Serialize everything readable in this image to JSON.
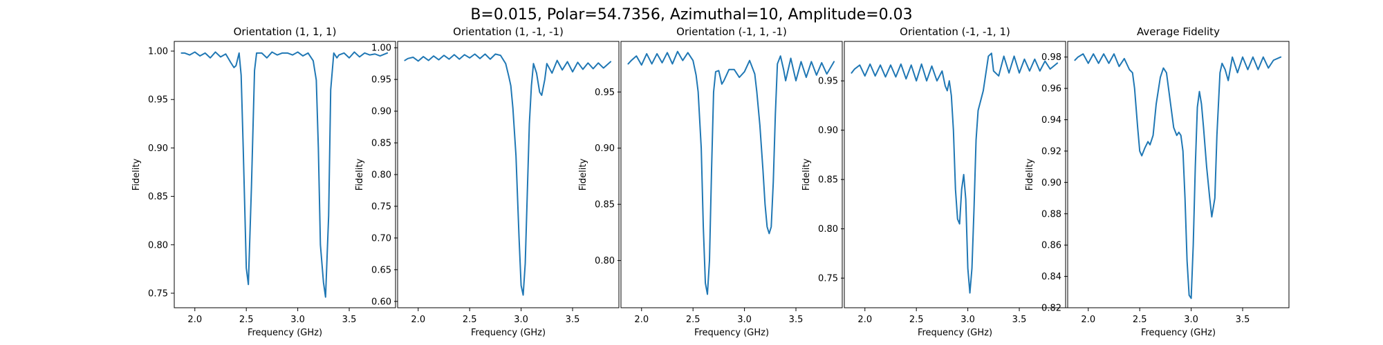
{
  "figure": {
    "suptitle": "B=0.015, Polar=54.7356, Azimuthal=10, Amplitude=0.03",
    "line_color": "#1f77b4"
  },
  "chart_data": [
    {
      "type": "line",
      "title": "Orientation (1, 1, 1)",
      "xlabel": "Frequency (GHz)",
      "ylabel": "Fidelity",
      "xlim": [
        1.8,
        3.95
      ],
      "ylim": [
        0.735,
        1.01
      ],
      "xticks": [
        2.0,
        2.5,
        3.0,
        3.5
      ],
      "yticks": [
        0.75,
        0.8,
        0.85,
        0.9,
        0.95,
        1.0
      ],
      "ytick_decimals": 2,
      "grid": false,
      "series": [
        {
          "x": [
            1.87,
            1.9,
            1.95,
            2.0,
            2.05,
            2.1,
            2.15,
            2.2,
            2.25,
            2.3,
            2.35,
            2.38,
            2.4,
            2.43,
            2.45,
            2.47,
            2.5,
            2.52,
            2.55,
            2.58,
            2.6,
            2.65,
            2.7,
            2.75,
            2.8,
            2.85,
            2.9,
            2.95,
            3.0,
            3.05,
            3.1,
            3.15,
            3.18,
            3.2,
            3.22,
            3.25,
            3.27,
            3.3,
            3.32,
            3.35,
            3.38,
            3.4,
            3.45,
            3.5,
            3.55,
            3.6,
            3.65,
            3.7,
            3.75,
            3.8,
            3.87
          ],
          "y": [
            0.998,
            0.998,
            0.996,
            0.999,
            0.995,
            0.998,
            0.993,
            0.999,
            0.994,
            0.997,
            0.988,
            0.983,
            0.985,
            0.998,
            0.975,
            0.9,
            0.776,
            0.759,
            0.86,
            0.98,
            0.998,
            0.998,
            0.993,
            0.999,
            0.996,
            0.998,
            0.998,
            0.996,
            0.999,
            0.995,
            0.998,
            0.99,
            0.97,
            0.9,
            0.8,
            0.761,
            0.746,
            0.83,
            0.96,
            0.998,
            0.993,
            0.996,
            0.998,
            0.993,
            0.999,
            0.994,
            0.998,
            0.996,
            0.997,
            0.995,
            0.998
          ]
        }
      ]
    },
    {
      "type": "line",
      "title": "Orientation (1, -1, -1)",
      "xlabel": "Frequency (GHz)",
      "ylabel": "Fidelity",
      "xlim": [
        1.8,
        3.95
      ],
      "ylim": [
        0.59,
        1.01
      ],
      "xticks": [
        2.0,
        2.5,
        3.0,
        3.5
      ],
      "yticks": [
        0.6,
        0.65,
        0.7,
        0.75,
        0.8,
        0.85,
        0.9,
        0.95,
        1.0
      ],
      "ytick_decimals": 2,
      "grid": false,
      "series": [
        {
          "x": [
            1.87,
            1.9,
            1.95,
            2.0,
            2.05,
            2.1,
            2.15,
            2.2,
            2.25,
            2.3,
            2.35,
            2.4,
            2.45,
            2.5,
            2.55,
            2.6,
            2.65,
            2.7,
            2.75,
            2.8,
            2.85,
            2.88,
            2.9,
            2.92,
            2.95,
            2.98,
            3.0,
            3.02,
            3.04,
            3.06,
            3.08,
            3.1,
            3.12,
            3.15,
            3.18,
            3.2,
            3.23,
            3.25,
            3.3,
            3.35,
            3.4,
            3.45,
            3.5,
            3.55,
            3.6,
            3.65,
            3.7,
            3.75,
            3.8,
            3.87
          ],
          "y": [
            0.98,
            0.983,
            0.985,
            0.979,
            0.986,
            0.98,
            0.987,
            0.981,
            0.988,
            0.982,
            0.989,
            0.982,
            0.989,
            0.984,
            0.99,
            0.983,
            0.99,
            0.982,
            0.99,
            0.988,
            0.975,
            0.955,
            0.94,
            0.905,
            0.83,
            0.7,
            0.625,
            0.61,
            0.66,
            0.77,
            0.88,
            0.94,
            0.975,
            0.96,
            0.93,
            0.925,
            0.95,
            0.975,
            0.96,
            0.98,
            0.965,
            0.978,
            0.962,
            0.977,
            0.966,
            0.976,
            0.967,
            0.976,
            0.968,
            0.978
          ]
        }
      ]
    },
    {
      "type": "line",
      "title": "Orientation (-1, 1, -1)",
      "xlabel": "Frequency (GHz)",
      "ylabel": "Fidelity",
      "xlim": [
        1.8,
        3.95
      ],
      "ylim": [
        0.758,
        0.995
      ],
      "xticks": [
        2.0,
        2.5,
        3.0,
        3.5
      ],
      "yticks": [
        0.8,
        0.85,
        0.9,
        0.95
      ],
      "ytick_decimals": 2,
      "grid": false,
      "series": [
        {
          "x": [
            1.87,
            1.9,
            1.95,
            2.0,
            2.05,
            2.1,
            2.15,
            2.2,
            2.25,
            2.3,
            2.35,
            2.4,
            2.45,
            2.5,
            2.53,
            2.55,
            2.58,
            2.6,
            2.62,
            2.64,
            2.66,
            2.68,
            2.7,
            2.72,
            2.75,
            2.78,
            2.8,
            2.85,
            2.9,
            2.95,
            3.0,
            3.05,
            3.1,
            3.12,
            3.15,
            3.18,
            3.2,
            3.22,
            3.24,
            3.26,
            3.28,
            3.3,
            3.32,
            3.35,
            3.38,
            3.4,
            3.45,
            3.5,
            3.55,
            3.6,
            3.65,
            3.7,
            3.75,
            3.8,
            3.87
          ],
          "y": [
            0.975,
            0.978,
            0.982,
            0.974,
            0.984,
            0.975,
            0.984,
            0.976,
            0.985,
            0.975,
            0.986,
            0.978,
            0.985,
            0.978,
            0.965,
            0.95,
            0.9,
            0.83,
            0.78,
            0.77,
            0.8,
            0.88,
            0.95,
            0.968,
            0.969,
            0.957,
            0.96,
            0.97,
            0.97,
            0.963,
            0.968,
            0.978,
            0.966,
            0.95,
            0.92,
            0.88,
            0.85,
            0.83,
            0.824,
            0.83,
            0.87,
            0.93,
            0.975,
            0.982,
            0.97,
            0.96,
            0.98,
            0.96,
            0.977,
            0.963,
            0.977,
            0.965,
            0.976,
            0.966,
            0.977
          ]
        }
      ]
    },
    {
      "type": "line",
      "title": "Orientation (-1, -1, 1)",
      "xlabel": "Frequency (GHz)",
      "ylabel": "Fidelity",
      "xlim": [
        1.8,
        3.95
      ],
      "ylim": [
        0.72,
        0.99
      ],
      "xticks": [
        2.0,
        2.5,
        3.0,
        3.5
      ],
      "yticks": [
        0.75,
        0.8,
        0.85,
        0.9,
        0.95
      ],
      "ytick_decimals": 2,
      "grid": false,
      "series": [
        {
          "x": [
            1.87,
            1.9,
            1.95,
            2.0,
            2.05,
            2.1,
            2.15,
            2.2,
            2.25,
            2.3,
            2.35,
            2.4,
            2.45,
            2.5,
            2.55,
            2.6,
            2.65,
            2.7,
            2.75,
            2.78,
            2.8,
            2.82,
            2.84,
            2.86,
            2.88,
            2.9,
            2.92,
            2.94,
            2.96,
            2.98,
            3.0,
            3.02,
            3.04,
            3.06,
            3.08,
            3.1,
            3.15,
            3.2,
            3.23,
            3.25,
            3.3,
            3.35,
            3.4,
            3.45,
            3.5,
            3.55,
            3.6,
            3.65,
            3.7,
            3.75,
            3.8,
            3.87
          ],
          "y": [
            0.958,
            0.962,
            0.966,
            0.955,
            0.967,
            0.955,
            0.966,
            0.954,
            0.966,
            0.954,
            0.967,
            0.952,
            0.966,
            0.95,
            0.967,
            0.95,
            0.965,
            0.95,
            0.96,
            0.945,
            0.94,
            0.95,
            0.935,
            0.9,
            0.84,
            0.81,
            0.805,
            0.84,
            0.855,
            0.83,
            0.76,
            0.735,
            0.76,
            0.82,
            0.89,
            0.92,
            0.94,
            0.975,
            0.978,
            0.96,
            0.955,
            0.975,
            0.958,
            0.975,
            0.958,
            0.972,
            0.96,
            0.972,
            0.96,
            0.97,
            0.962,
            0.968
          ]
        }
      ]
    },
    {
      "type": "line",
      "title": "Average Fidelity",
      "xlabel": "Frequency (GHz)",
      "ylabel": "Fidelity",
      "xlim": [
        1.8,
        3.95
      ],
      "ylim": [
        0.82,
        0.99
      ],
      "xticks": [
        2.0,
        2.5,
        3.0,
        3.5
      ],
      "yticks": [
        0.82,
        0.84,
        0.86,
        0.88,
        0.9,
        0.92,
        0.94,
        0.96,
        0.98
      ],
      "ytick_decimals": 2,
      "grid": false,
      "series": [
        {
          "x": [
            1.87,
            1.9,
            1.95,
            2.0,
            2.05,
            2.1,
            2.15,
            2.2,
            2.25,
            2.3,
            2.35,
            2.4,
            2.43,
            2.45,
            2.48,
            2.5,
            2.52,
            2.55,
            2.58,
            2.6,
            2.63,
            2.66,
            2.7,
            2.73,
            2.76,
            2.8,
            2.83,
            2.86,
            2.88,
            2.9,
            2.92,
            2.94,
            2.96,
            2.98,
            3.0,
            3.02,
            3.04,
            3.06,
            3.08,
            3.1,
            3.12,
            3.15,
            3.18,
            3.2,
            3.23,
            3.25,
            3.28,
            3.3,
            3.33,
            3.36,
            3.4,
            3.45,
            3.5,
            3.55,
            3.6,
            3.65,
            3.7,
            3.75,
            3.8,
            3.87
          ],
          "y": [
            0.978,
            0.98,
            0.982,
            0.976,
            0.982,
            0.976,
            0.982,
            0.976,
            0.982,
            0.974,
            0.979,
            0.972,
            0.97,
            0.96,
            0.935,
            0.92,
            0.917,
            0.922,
            0.926,
            0.924,
            0.93,
            0.95,
            0.967,
            0.973,
            0.97,
            0.95,
            0.935,
            0.93,
            0.932,
            0.93,
            0.92,
            0.89,
            0.85,
            0.828,
            0.826,
            0.86,
            0.91,
            0.948,
            0.958,
            0.95,
            0.935,
            0.91,
            0.89,
            0.878,
            0.89,
            0.93,
            0.97,
            0.976,
            0.972,
            0.965,
            0.98,
            0.97,
            0.98,
            0.972,
            0.98,
            0.972,
            0.98,
            0.973,
            0.978,
            0.98
          ]
        }
      ]
    }
  ]
}
